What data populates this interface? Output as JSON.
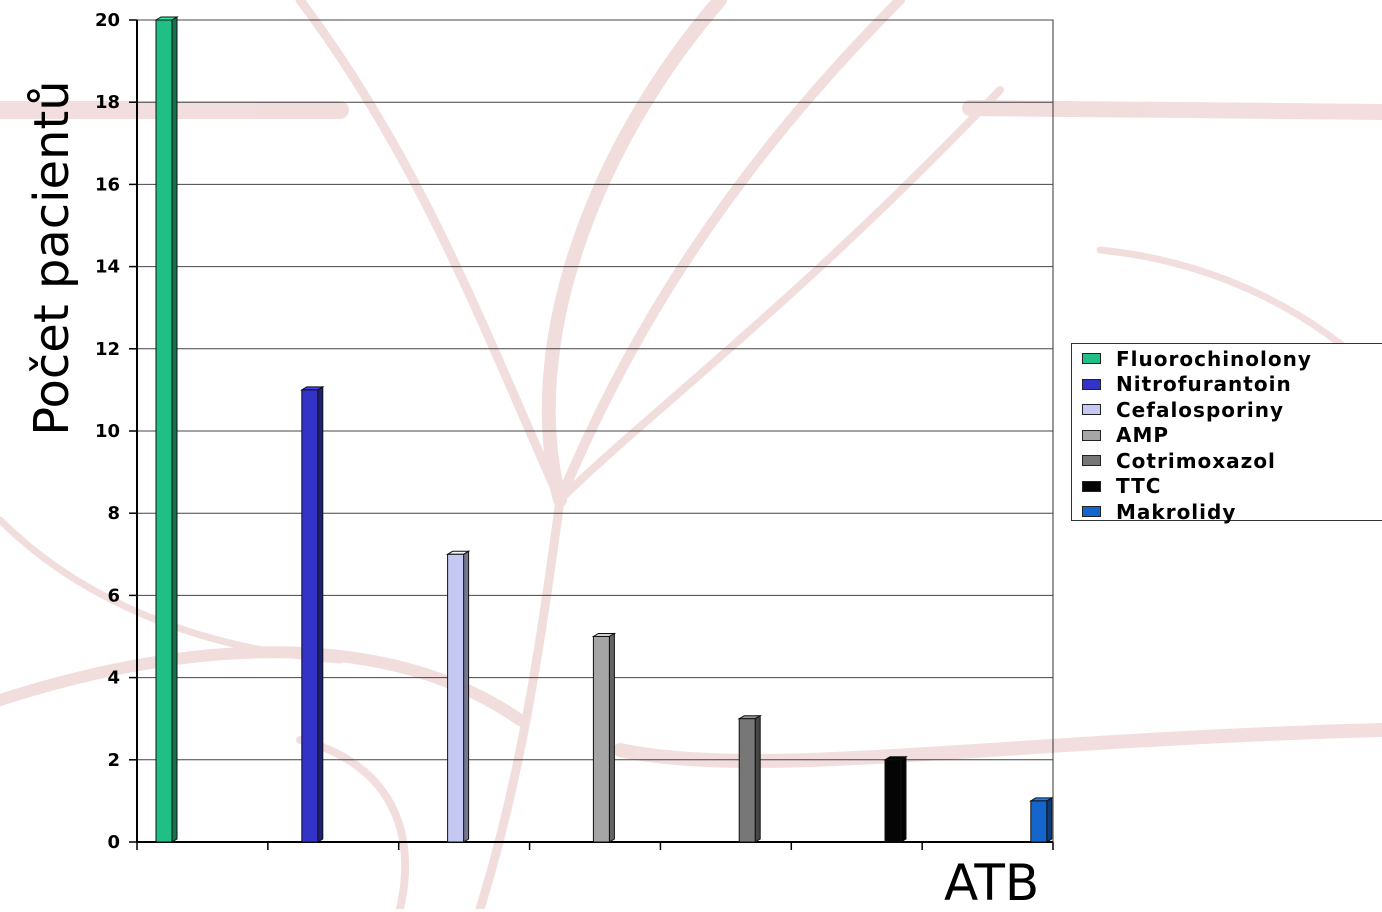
{
  "chart_data": {
    "type": "bar",
    "xlabel": "ATB",
    "ylabel": "Počet pacientů",
    "ylim": [
      0,
      20
    ],
    "yticks": [
      "0",
      "2",
      "4",
      "6",
      "8",
      "10",
      "12",
      "14",
      "16",
      "18",
      "20"
    ],
    "grid": true,
    "legend_position": "right",
    "series": [
      {
        "name": "Fluorochinolony",
        "value": 20,
        "color": "#1fbf86"
      },
      {
        "name": "Nitrofurantoin",
        "value": 11,
        "color": "#3333c8"
      },
      {
        "name": "Cefalosporiny",
        "value": 7,
        "color": "#c4c8f2"
      },
      {
        "name": "AMP",
        "value": 5,
        "color": "#a6a6a6"
      },
      {
        "name": "Cotrimoxazol",
        "value": 3,
        "color": "#777777"
      },
      {
        "name": "TTC",
        "value": 2,
        "color": "#050505"
      },
      {
        "name": "Makrolidy",
        "value": 1,
        "color": "#1466cc"
      }
    ]
  }
}
